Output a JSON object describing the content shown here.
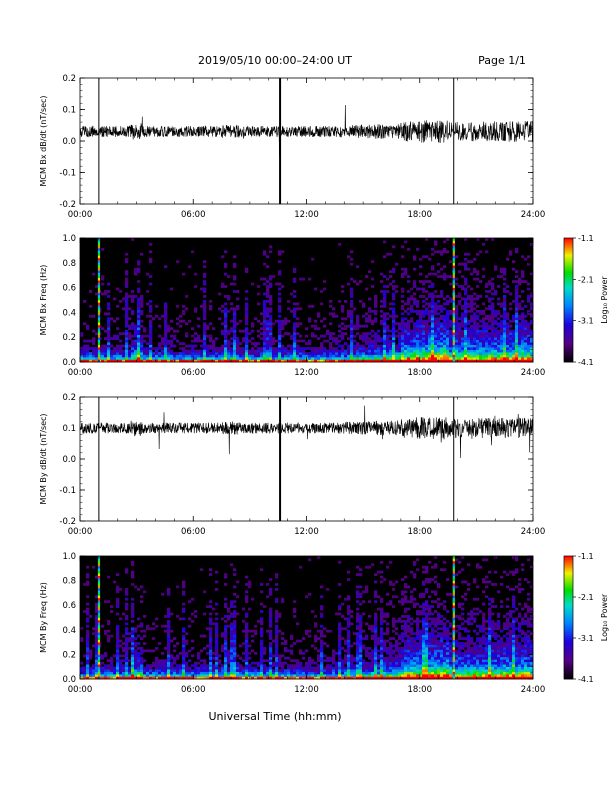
{
  "header": {
    "title": "2019/05/10   00:00–24:00 UT",
    "page": "Page 1/1"
  },
  "footer": {
    "xlabel": "Universal Time (hh:mm)"
  },
  "chart_data": [
    {
      "type": "line",
      "ylabel": "MCM Bx dB/dt (nT/sec)",
      "xlim": [
        0,
        24
      ],
      "ylim": [
        -0.2,
        0.2
      ],
      "x_ticks": [
        "00:00",
        "06:00",
        "12:00",
        "18:00",
        "24:00"
      ],
      "y_ticks": [
        "-0.2",
        "-0.1",
        "0.0",
        "0.1",
        "0.2"
      ],
      "baseline": 0.03,
      "spike_hours": [
        1.0,
        10.6,
        19.8
      ]
    },
    {
      "type": "heatmap",
      "ylabel": "MCM Bx Freq (Hz)",
      "xlim": [
        0,
        24
      ],
      "ylim": [
        0,
        1
      ],
      "x_ticks": [
        "00:00",
        "06:00",
        "12:00",
        "18:00",
        "24:00"
      ],
      "y_ticks": [
        "0.0",
        "0.2",
        "0.4",
        "0.6",
        "0.8",
        "1.0"
      ],
      "colorbar": {
        "label": "Log₁₀ Power",
        "ticks": [
          "-1.1",
          "-2.1",
          "-3.1",
          "-4.1"
        ],
        "range": [
          -4.1,
          -1.1
        ]
      },
      "broadband_hours": [
        1.0,
        19.8
      ]
    },
    {
      "type": "line",
      "ylabel": "MCM By dB/dt (nT/sec)",
      "xlim": [
        0,
        24
      ],
      "ylim": [
        -0.2,
        0.2
      ],
      "x_ticks": [
        "00:00",
        "06:00",
        "12:00",
        "18:00",
        "24:00"
      ],
      "y_ticks": [
        "-0.2",
        "-0.1",
        "0.0",
        "0.1",
        "0.2"
      ],
      "baseline": 0.1,
      "spike_hours": [
        1.0,
        10.6,
        19.8
      ]
    },
    {
      "type": "heatmap",
      "ylabel": "MCM By Freq (Hz)",
      "xlim": [
        0,
        24
      ],
      "ylim": [
        0,
        1
      ],
      "x_ticks": [
        "00:00",
        "06:00",
        "12:00",
        "18:00",
        "24:00"
      ],
      "y_ticks": [
        "0.0",
        "0.2",
        "0.4",
        "0.6",
        "0.8",
        "1.0"
      ],
      "colorbar": {
        "label": "Log₁₀ Power",
        "ticks": [
          "-1.1",
          "-2.1",
          "-3.1",
          "-4.1"
        ],
        "range": [
          -4.1,
          -1.1
        ]
      },
      "broadband_hours": [
        1.0,
        19.8
      ]
    }
  ]
}
